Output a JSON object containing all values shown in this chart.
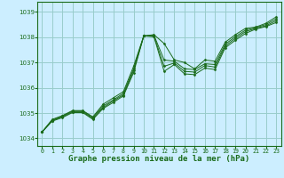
{
  "title": "Graphe pression niveau de la mer (hPa)",
  "background_color": "#cceeff",
  "grid_color": "#99cccc",
  "line_color": "#1a6b1a",
  "marker_color": "#1a6b1a",
  "ylim": [
    1033.7,
    1039.4
  ],
  "xlim": [
    -0.5,
    23.5
  ],
  "yticks": [
    1034,
    1035,
    1036,
    1037,
    1038,
    1039
  ],
  "xticks": [
    0,
    1,
    2,
    3,
    4,
    5,
    6,
    7,
    8,
    9,
    10,
    11,
    12,
    13,
    14,
    15,
    16,
    17,
    18,
    19,
    20,
    21,
    22,
    23
  ],
  "series": [
    [
      1034.25,
      1034.75,
      1034.9,
      1035.1,
      1035.1,
      1034.85,
      1035.35,
      1035.6,
      1035.85,
      1036.85,
      1038.05,
      1038.1,
      1037.75,
      1037.1,
      1037.0,
      1036.75,
      1037.1,
      1037.05,
      1037.8,
      1038.1,
      1038.35,
      1038.4,
      1038.55,
      1038.8
    ],
    [
      1034.25,
      1034.72,
      1034.88,
      1035.08,
      1035.08,
      1034.82,
      1035.28,
      1035.52,
      1035.78,
      1036.75,
      1038.05,
      1038.08,
      1037.1,
      1037.05,
      1036.75,
      1036.72,
      1036.95,
      1036.92,
      1037.72,
      1038.02,
      1038.28,
      1038.38,
      1038.5,
      1038.72
    ],
    [
      1034.25,
      1034.7,
      1034.85,
      1035.05,
      1035.05,
      1034.78,
      1035.22,
      1035.48,
      1035.72,
      1036.68,
      1038.05,
      1038.05,
      1036.85,
      1036.98,
      1036.65,
      1036.62,
      1036.88,
      1036.82,
      1037.65,
      1037.95,
      1038.22,
      1038.35,
      1038.45,
      1038.65
    ],
    [
      1034.25,
      1034.68,
      1034.82,
      1035.02,
      1035.02,
      1034.75,
      1035.18,
      1035.42,
      1035.68,
      1036.6,
      1038.05,
      1038.02,
      1036.65,
      1036.92,
      1036.55,
      1036.52,
      1036.78,
      1036.72,
      1037.58,
      1037.88,
      1038.15,
      1038.32,
      1038.42,
      1038.58
    ]
  ]
}
